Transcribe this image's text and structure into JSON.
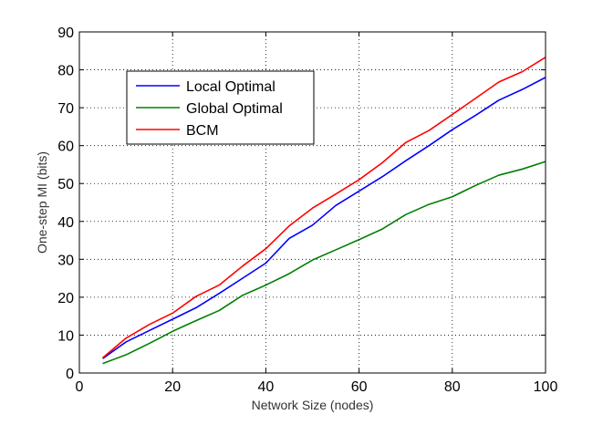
{
  "chart_data": {
    "type": "line",
    "xlabel": "Network Size (nodes)",
    "ylabel": "One-step MI (bits)",
    "xlim": [
      0,
      100
    ],
    "ylim": [
      0,
      90
    ],
    "xticks": [
      0,
      20,
      40,
      60,
      80,
      100
    ],
    "yticks": [
      0,
      10,
      20,
      30,
      40,
      50,
      60,
      70,
      80,
      90
    ],
    "grid": true,
    "legend_position": "upper-left",
    "x": [
      5,
      10,
      15,
      20,
      25,
      30,
      35,
      40,
      45,
      50,
      55,
      60,
      65,
      70,
      75,
      80,
      85,
      90,
      95,
      100
    ],
    "series": [
      {
        "name": "Local Optimal",
        "color": "#0000ff",
        "values": [
          3.8,
          8.2,
          11.2,
          14.2,
          17.2,
          21.0,
          25.0,
          29.0,
          35.5,
          39.0,
          44.2,
          48.0,
          51.8,
          56.0,
          60.0,
          64.2,
          68.0,
          72.0,
          74.8,
          78.0
        ]
      },
      {
        "name": "Global Optimal",
        "color": "#008000",
        "values": [
          2.5,
          4.8,
          7.8,
          11.0,
          13.8,
          16.5,
          20.5,
          23.2,
          26.2,
          29.8,
          32.5,
          35.2,
          38.0,
          41.8,
          44.5,
          46.5,
          49.5,
          52.2,
          53.8,
          55.8
        ]
      },
      {
        "name": "BCM",
        "color": "#ff0000",
        "values": [
          4.0,
          9.2,
          12.8,
          15.8,
          20.2,
          23.2,
          28.2,
          32.8,
          38.8,
          43.5,
          47.2,
          51.0,
          55.5,
          60.8,
          64.0,
          68.2,
          72.5,
          76.8,
          79.5,
          83.3
        ]
      }
    ]
  }
}
